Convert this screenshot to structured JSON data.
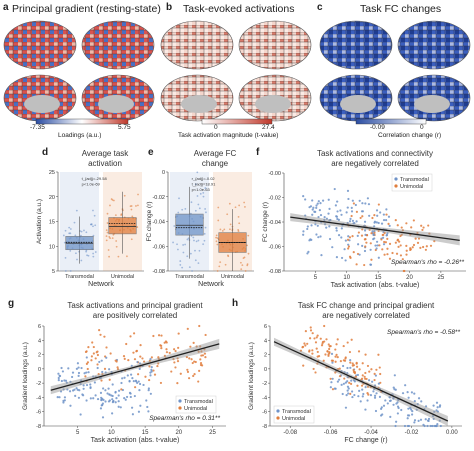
{
  "figure": {
    "panel_letters": [
      "a",
      "b",
      "c",
      "d",
      "e",
      "f",
      "g",
      "h"
    ],
    "a": {
      "title": "Principal gradient (resting-state)",
      "cbar_min": "-7.35",
      "cbar_max": "5.75",
      "cbar_label": "Loadings (a.u.)"
    },
    "b": {
      "title": "Task-evoked activations",
      "cbar_min": "0",
      "cbar_max": "27.4",
      "cbar_label": "Task activation magnitude (t-value)"
    },
    "c": {
      "title": "Task FC changes",
      "cbar_min": "-0.09",
      "cbar_max": "0",
      "cbar_label": "Correlation change (r)"
    },
    "colors": {
      "transmodal": "#6f93c8",
      "unimodal": "#e07d3c",
      "red": "#c0392b",
      "blue": "#2c4ea3"
    }
  },
  "chart_data": [
    {
      "panel": "d",
      "type": "box",
      "title": "Average task\nactivation",
      "xlabel": "Network",
      "ylabel": "Activation (a.u.)",
      "categories": [
        "Transmodal",
        "Unimodal"
      ],
      "ylim": [
        5,
        25
      ],
      "yticks": [
        "5",
        "10",
        "15",
        "20",
        "25"
      ],
      "stats": [
        "t_{adj}=-29.58",
        "p<1.0e-69"
      ],
      "boxes": [
        {
          "q1": 9.3,
          "median": 10.6,
          "q3": 12.0,
          "whisk_lo": 6.5,
          "whisk_hi": 16.0,
          "mean": 10.8
        },
        {
          "q1": 12.5,
          "median": 14.0,
          "q3": 15.8,
          "whisk_lo": 8.5,
          "whisk_hi": 21.0,
          "mean": 14.6
        }
      ]
    },
    {
      "panel": "e",
      "type": "box",
      "title": "Average FC\nchange",
      "xlabel": "Network",
      "ylabel": "FC change (r)",
      "categories": [
        "Transmodal",
        "Unimodal"
      ],
      "ylim": [
        -0.08,
        0.0
      ],
      "yticks": [
        "0",
        "-0.02",
        "-0.04",
        "-0.06",
        "-0.08"
      ],
      "stats": [
        "r_{adj}=-0.02",
        "t_{adj}=18.91",
        "p<1.0e-63"
      ],
      "boxes": [
        {
          "q1": -0.051,
          "median": -0.043,
          "q3": -0.034,
          "whisk_lo": -0.07,
          "whisk_hi": -0.012,
          "mean": -0.045
        },
        {
          "q1": -0.065,
          "median": -0.057,
          "q3": -0.049,
          "whisk_lo": -0.08,
          "whisk_hi": -0.03,
          "mean": -0.057
        }
      ]
    },
    {
      "panel": "f",
      "type": "scatter",
      "title": "Task activations and connectivity\nare negatively correlated",
      "xlabel": "Task activation (abs. t-value)",
      "ylabel": "FC change (r)",
      "xlim": [
        0,
        29
      ],
      "ylim": [
        -0.08,
        0.0
      ],
      "xticks": [
        "5",
        "10",
        "15",
        "20",
        "25"
      ],
      "xtick_values": [
        5,
        10,
        15,
        20,
        25
      ],
      "yticks": [
        "-0.00",
        "-0.02",
        "-0.04",
        "-0.06",
        "-0.08"
      ],
      "ytick_values": [
        0,
        -0.02,
        -0.04,
        -0.06,
        -0.08
      ],
      "legend": [
        "Transmodal",
        "Unimodal"
      ],
      "annotation": "Spearman's rho = -0.26**",
      "fit": {
        "x": [
          1,
          28
        ],
        "y": [
          -0.036,
          -0.055
        ]
      }
    },
    {
      "panel": "g",
      "type": "scatter",
      "title": "Task activations and principal gradient\nare positively correlated",
      "xlabel": "Task activation (abs. t-value)",
      "ylabel": "Gradient loadings (a.u.)",
      "xlim": [
        0,
        27
      ],
      "ylim": [
        -8,
        6
      ],
      "xticks": [
        "5",
        "10",
        "15",
        "20",
        "25"
      ],
      "xtick_values": [
        5,
        10,
        15,
        20,
        25
      ],
      "yticks": [
        "6",
        "4",
        "2",
        "0",
        "-2",
        "-4",
        "-6",
        "-8"
      ],
      "ytick_values": [
        6,
        4,
        2,
        0,
        -2,
        -4,
        -6,
        -8
      ],
      "legend": [
        "Transmodal",
        "Unimodal"
      ],
      "annotation": "Spearman's rho = 0.31**",
      "fit": {
        "x": [
          1,
          26
        ],
        "y": [
          -3.0,
          3.5
        ]
      }
    },
    {
      "panel": "h",
      "type": "scatter",
      "title": "Task FC change and principal gradient\nare negatively correlated",
      "xlabel": "FC change (r)",
      "ylabel": "Gradient loadings (a.u.)",
      "xlim": [
        -0.09,
        0.005
      ],
      "ylim": [
        -8,
        6
      ],
      "xticks": [
        "-0.08",
        "-0.06",
        "-0.04",
        "-0.02",
        "0.00"
      ],
      "xtick_values": [
        -0.08,
        -0.06,
        -0.04,
        -0.02,
        0.0
      ],
      "yticks": [
        "6",
        "4",
        "2",
        "0",
        "-2",
        "-4",
        "-6",
        "-8"
      ],
      "ytick_values": [
        6,
        4,
        2,
        0,
        -2,
        -4,
        -6,
        -8
      ],
      "legend": [
        "Transmodal",
        "Unimodal"
      ],
      "annotation": "Spearman's rho = -0.58**",
      "fit": {
        "x": [
          -0.088,
          -0.002
        ],
        "y": [
          3.8,
          -7.3
        ]
      }
    }
  ]
}
